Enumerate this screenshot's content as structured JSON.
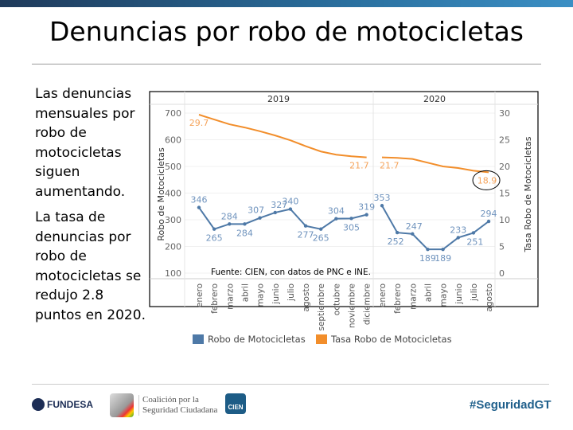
{
  "header": {
    "title": "Denuncias por robo de motocicletas"
  },
  "side_text": [
    "Las denuncias mensuales por robo de motocicletas siguen aumentando.",
    "La tasa de denuncias por robo de motocicletas se redujo 2.8 puntos en 2020."
  ],
  "chart_data": {
    "type": "line",
    "panels": [
      {
        "year": "2019",
        "months": [
          "enero",
          "febrero",
          "marzo",
          "abril",
          "mayo",
          "junio",
          "julio",
          "agosto",
          "septiembre",
          "octubre",
          "noviembre",
          "diciembre"
        ],
        "robo": [
          346,
          265,
          284,
          284,
          307,
          327,
          340,
          277,
          265,
          304,
          305,
          319
        ],
        "tasa": [
          29.7,
          28.8,
          27.9,
          27.3,
          26.6,
          25.8,
          24.9,
          23.8,
          22.8,
          22.2,
          21.9,
          21.7
        ]
      },
      {
        "year": "2020",
        "months": [
          "enero",
          "febrero",
          "marzo",
          "abril",
          "mayo",
          "junio",
          "julio",
          "agosto"
        ],
        "robo": [
          353,
          252,
          247,
          189,
          189,
          233,
          251,
          294
        ],
        "tasa": [
          21.7,
          21.6,
          21.4,
          20.7,
          20.0,
          19.7,
          19.2,
          18.9
        ]
      }
    ],
    "tasa_labels": {
      "2019": {
        "0": "29.7",
        "11": "21.7"
      },
      "2020": {
        "0": "21.7",
        "7": "18.9"
      }
    },
    "ylabel": "Robo de Motocicletas",
    "y2label": "Tasa Robo de Motocicletas",
    "ylim": [
      100,
      700
    ],
    "yticks": [
      100,
      200,
      300,
      400,
      500,
      600,
      700
    ],
    "y2lim": [
      0,
      30
    ],
    "y2ticks": [
      0,
      5,
      10,
      15,
      20,
      25,
      30
    ],
    "source": "Fuente: CIEN, con datos de PNC e INE.",
    "legend": [
      {
        "name": "Robo de Motocicletas",
        "color": "#4e79a7"
      },
      {
        "name": "Tasa Robo de Motocicletas",
        "color": "#f28e2b"
      }
    ],
    "legend_position": "bottom"
  },
  "footer": {
    "fundesa": "FUNDESA",
    "coalicion": "Coalición por la Seguridad Ciudadana",
    "cien": "CIEN",
    "hashtag": "#SeguridadGT"
  },
  "colors": {
    "robo": "#4e79a7",
    "tasa": "#f28e2b",
    "hashtag": "#1f5f8b"
  }
}
